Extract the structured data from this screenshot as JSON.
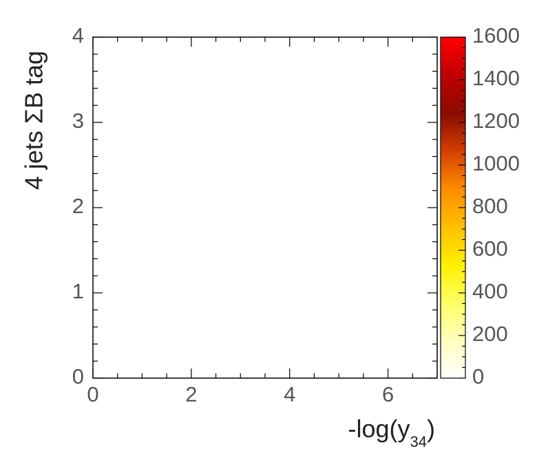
{
  "chart_data": {
    "type": "heatmap",
    "xlabel": {
      "prefix": "-log(y",
      "subscript": "34",
      "suffix": ")"
    },
    "ylabel": "4 jets ΣB tag",
    "xlim": [
      0,
      7
    ],
    "ylim": [
      0,
      4
    ],
    "x_ticks": [
      "0",
      "2",
      "4",
      "6"
    ],
    "x_tick_values": [
      0,
      2,
      4,
      6
    ],
    "y_ticks": [
      "0",
      "1",
      "2",
      "3",
      "4"
    ],
    "y_tick_values": [
      0,
      1,
      2,
      3,
      4
    ],
    "colorbar": {
      "range": [
        0,
        1600
      ],
      "ticks": [
        "0",
        "200",
        "400",
        "600",
        "800",
        "1000",
        "1200",
        "1400",
        "1600"
      ],
      "tick_values": [
        0,
        200,
        400,
        600,
        800,
        1000,
        1200,
        1400,
        1600
      ],
      "colors": [
        "#ffffff",
        "#ffffc0",
        "#ffff66",
        "#fff000",
        "#ffc000",
        "#ff8c00",
        "#d24000",
        "#8a0c00",
        "#bf0000",
        "#ff0000"
      ]
    },
    "x_bins": {
      "min": 0,
      "max": 7,
      "count": 20
    },
    "y_bins": {
      "min": 0,
      "max": 4,
      "count": 20
    },
    "note_cells": "rows indexed from the top bin (y 3.8-4.0) down to the bottom bin (y 0.0-0.2); each row lists 20 x-bins from x=0.0 to x=7.0",
    "cells": [
      [
        0,
        0,
        0,
        0,
        0,
        0,
        0,
        0,
        0,
        0,
        0,
        0,
        0,
        0,
        0,
        0,
        0,
        0,
        0,
        0
      ],
      [
        0,
        0,
        0,
        0,
        0,
        0,
        0,
        0,
        0,
        0,
        0,
        0,
        0,
        0,
        0,
        0,
        0,
        0,
        0,
        0
      ],
      [
        0,
        0,
        0,
        0,
        0,
        0,
        0,
        0,
        0,
        0,
        0,
        0,
        0,
        0,
        0,
        0,
        0,
        0,
        0,
        0
      ],
      [
        0,
        0,
        0,
        0,
        0,
        0,
        0,
        0,
        0,
        0,
        0,
        0,
        0,
        0,
        0,
        0,
        0,
        0,
        0,
        0
      ],
      [
        0,
        0,
        0,
        0,
        0,
        0,
        0,
        0,
        0,
        0,
        0,
        0,
        0,
        0,
        0,
        0,
        0,
        0,
        0,
        0
      ],
      [
        0,
        0,
        0,
        0,
        0,
        0,
        0,
        0,
        0,
        0,
        0,
        0,
        0,
        0,
        0,
        0,
        0,
        0,
        0,
        0
      ],
      [
        0,
        0,
        0,
        0,
        0,
        0,
        0,
        0,
        0,
        0,
        0,
        0,
        0,
        0,
        0,
        0,
        0,
        0,
        0,
        0
      ],
      [
        0,
        0,
        0,
        0,
        0,
        0,
        0,
        0,
        0,
        0,
        0,
        0,
        0,
        0,
        0,
        0,
        0,
        0,
        0,
        0
      ],
      [
        0,
        0,
        0,
        0,
        0,
        0,
        0,
        0,
        0,
        0,
        0,
        0,
        0,
        0,
        0,
        0,
        0,
        0,
        0,
        0
      ],
      [
        0,
        0,
        0,
        0,
        0,
        0,
        0,
        0,
        0,
        0,
        0,
        0,
        0,
        0,
        0,
        0,
        0,
        0,
        0,
        0
      ],
      [
        0,
        0,
        0,
        0,
        0,
        0,
        0,
        0,
        0,
        0,
        0,
        0,
        0,
        0,
        0,
        0,
        0,
        0,
        0,
        0
      ],
      [
        0,
        0,
        0,
        0,
        0,
        0,
        0,
        0,
        0,
        0,
        0,
        0,
        0,
        0,
        0,
        0,
        0,
        0,
        0,
        0
      ],
      [
        0,
        0,
        0,
        0,
        0,
        0,
        0,
        0,
        0,
        0,
        0,
        0,
        0,
        0,
        0,
        0,
        0,
        0,
        0,
        0
      ],
      [
        0,
        0,
        0,
        0,
        0,
        0,
        0,
        0,
        0,
        0,
        0,
        0,
        0,
        0,
        0,
        0,
        0,
        0,
        0,
        0
      ],
      [
        0,
        0,
        0,
        0,
        0,
        0,
        0,
        0,
        0,
        0,
        0,
        0,
        0,
        0,
        0,
        0,
        0,
        0,
        0,
        0
      ],
      [
        0,
        0,
        0,
        0,
        0,
        0,
        0,
        0,
        0,
        0,
        0,
        0,
        0,
        0,
        0,
        0,
        0,
        0,
        0,
        0
      ],
      [
        0,
        0,
        0,
        0,
        0,
        0,
        0,
        0,
        0,
        0,
        0,
        0,
        0,
        0,
        0,
        0,
        0,
        0,
        0,
        0
      ],
      [
        0,
        0,
        0,
        0,
        0,
        0,
        0,
        0,
        0,
        0,
        0,
        0,
        0,
        0,
        0,
        0,
        0,
        0,
        0,
        0
      ],
      [
        0,
        0,
        0,
        0,
        0,
        0,
        0,
        0,
        0,
        0,
        0,
        0,
        0,
        0,
        0,
        0,
        0,
        0,
        0,
        0
      ],
      [
        0,
        0,
        0,
        0,
        0,
        0,
        0,
        0,
        0,
        0,
        0,
        0,
        0,
        0,
        0,
        0,
        0,
        0,
        0,
        0
      ]
    ]
  }
}
